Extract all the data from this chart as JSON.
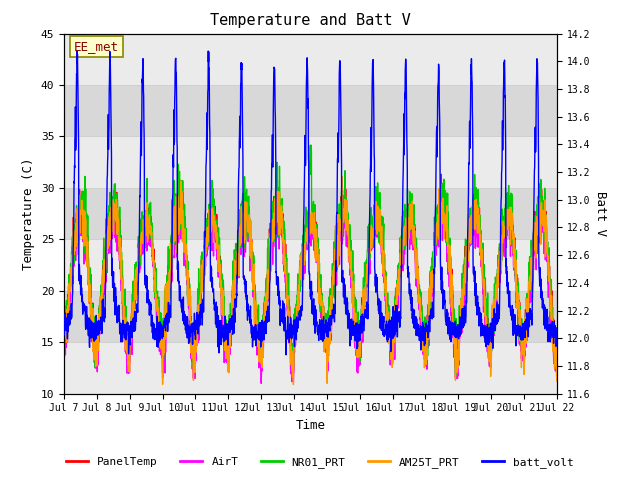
{
  "title": "Temperature and Batt V",
  "xlabel": "Time",
  "ylabel_left": "Temperature (C)",
  "ylabel_right": "Batt V",
  "annotation_text": "EE_met",
  "ylim_left": [
    10,
    45
  ],
  "ylim_right": [
    11.6,
    14.2
  ],
  "x_tick_labels": [
    "Jul 7",
    "Jul 8",
    "Jul 9",
    "Jul 10",
    "Jul 11",
    "Jul 12",
    "Jul 13",
    "Jul 14",
    "Jul 15",
    "Jul 16",
    "Jul 17",
    "Jul 18",
    "Jul 19",
    "Jul 20",
    "Jul 21",
    "Jul 22"
  ],
  "yticks_left": [
    10,
    15,
    20,
    25,
    30,
    35,
    40,
    45
  ],
  "yticks_right": [
    11.6,
    11.8,
    12.0,
    12.2,
    12.4,
    12.6,
    12.8,
    13.0,
    13.2,
    13.4,
    13.6,
    13.8,
    14.0,
    14.2
  ],
  "grid_color": "#d0d0d0",
  "bg_color_light": "#ebebeb",
  "bg_color_dark": "#d8d8d8",
  "series_colors": {
    "PanelTemp": "#ff0000",
    "AirT": "#ff00ff",
    "NR01_PRT": "#00cc00",
    "AM25T_PRT": "#ff9900",
    "batt_volt": "#0000ff"
  },
  "legend_entries": [
    "PanelTemp",
    "AirT",
    "NR01_PRT",
    "AM25T_PRT",
    "batt_volt"
  ]
}
